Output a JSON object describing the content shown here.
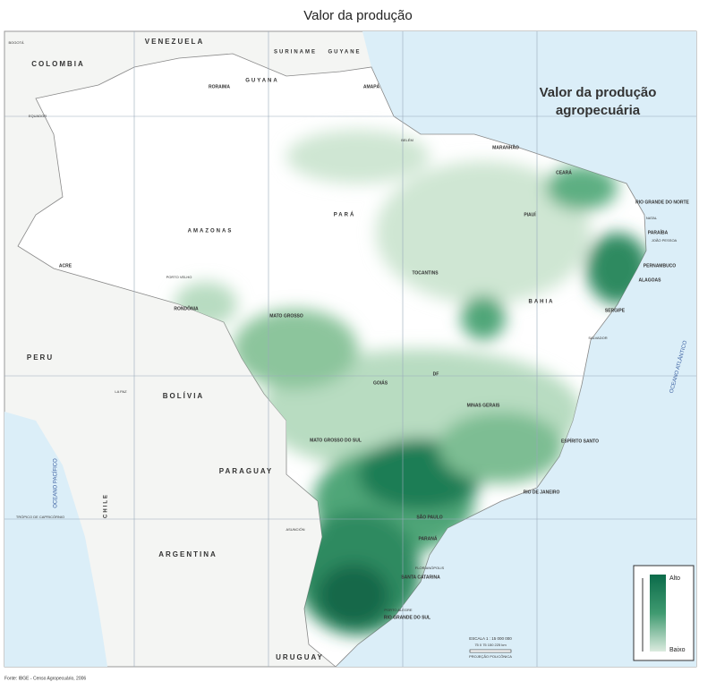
{
  "header": {
    "title": "Valor da produção"
  },
  "map": {
    "title_lines": [
      "Valor da produção",
      "agropecuária"
    ],
    "labels": [
      "COLOMBIA",
      "VENEZUELA",
      "SURINAME",
      "GUYANE",
      "GUYANA",
      "RORAIMA",
      "AMAPÁ",
      "AMAZONAS",
      "PARÁ",
      "MARANHÃO",
      "CEARÁ",
      "RIO GRANDE DO NORTE",
      "PIAUÍ",
      "PARAÍBA",
      "PERNAMBUCO",
      "ALAGOAS",
      "SERGIPE",
      "BAHIA",
      "TOCANTINS",
      "ACRE",
      "RONDÔNIA",
      "MATO GROSSO",
      "GOIÁS",
      "DF",
      "MINAS GERAIS",
      "ESPÍRITO SANTO",
      "MATO GROSSO DO SUL",
      "RIO DE JANEIRO",
      "SÃO PAULO",
      "PARANÁ",
      "SANTA CATARINA",
      "RIO GRANDE DO SUL",
      "PERU",
      "BOLÍVIA",
      "PARAGUAY",
      "ARGENTINA",
      "CHILE",
      "URUGUAY",
      "OCEANO ATLÂNTICO",
      "OCEANO PACÍFICO",
      "EQUADOR",
      "TRÓPICO DE CAPRICÓRNIO",
      "BELÉM",
      "SALVADOR",
      "PORTO VELHO",
      "ASUNCIÓN",
      "LA PAZ",
      "BOGOTÁ",
      "NATAL",
      "JOÃO PESSOA",
      "FLORIANÓPOLIS",
      "PORTO ALEGRE"
    ],
    "legend": {
      "high": "Alto",
      "low": "Baixo"
    },
    "scale": "ESCALA 1 : 15 000 000",
    "scale_ticks": "75  0  75  150  225 km",
    "projection": "PROJEÇÃO POLICÔNICA",
    "source": "Fonte: IBGE - Censo Agropecuário, 2006"
  }
}
